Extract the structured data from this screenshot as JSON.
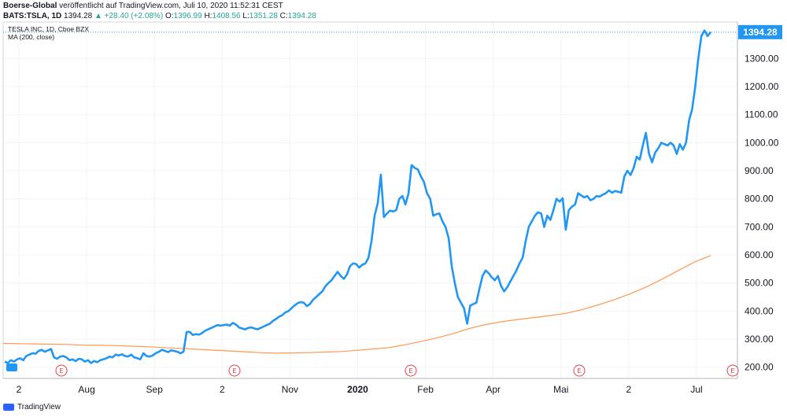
{
  "header": {
    "publisher": "Boerse-Global",
    "published_text": "veröffentlicht auf TradingView.com, Juli 10, 2020 11:52:31 CEST",
    "symbol": "BATS:TSLA, 1D",
    "last": "1394.28",
    "change": "▲ +28.40 (+2.08%)",
    "o_label": "O:",
    "o_value": "1396.99",
    "h_label": "H:",
    "h_value": "1408.56",
    "l_label": "L:",
    "l_value": "1351.28",
    "c_label": "C:",
    "c_value": "1394.28"
  },
  "legend": {
    "instrument": "TESLA INC, 1D, Cboe BZX",
    "indicator": "MA (200, close)"
  },
  "price_badge": "1394.28",
  "footer": {
    "brand": "TradingView"
  },
  "colors": {
    "price": "#2196f3",
    "ma": "#ff9850",
    "badge": "#2196f3",
    "event": "#e0414b",
    "grid": "#f0f3fa"
  },
  "chart_data": {
    "type": "line",
    "y_ticks": [
      "200.00",
      "300.00",
      "400.00",
      "500.00",
      "600.00",
      "700.00",
      "800.00",
      "900.00",
      "1000.00",
      "1100.00",
      "1200.00",
      "1300.00"
    ],
    "x_ticks": [
      "2",
      "Aug",
      "Sep",
      "2",
      "Nov",
      "2020",
      "Feb",
      "Apr",
      "Mai",
      "2",
      "Jul"
    ],
    "ylim": [
      160,
      1430
    ],
    "grid": true,
    "events": [
      "E",
      "E",
      "E",
      "E",
      "E"
    ],
    "series": [
      {
        "name": "TESLA INC, 1D, Cboe BZX",
        "values": [
          220,
          215,
          225,
          220,
          228,
          232,
          225,
          240,
          245,
          250,
          248,
          258,
          262,
          255,
          260,
          265,
          235,
          230,
          238,
          240,
          235,
          225,
          228,
          222,
          230,
          228,
          220,
          225,
          215,
          222,
          218,
          225,
          228,
          232,
          238,
          235,
          245,
          242,
          246,
          240,
          238,
          245,
          235,
          232,
          228,
          250,
          240,
          238,
          242,
          250,
          255,
          262,
          258,
          254,
          260,
          258,
          255,
          250,
          255,
          325,
          326,
          315,
          318,
          316,
          322,
          330,
          335,
          340,
          345,
          350,
          348,
          350,
          352,
          348,
          358,
          352,
          342,
          338,
          335,
          340,
          342,
          338,
          335,
          340,
          345,
          350,
          355,
          365,
          372,
          380,
          385,
          395,
          400,
          410,
          420,
          428,
          432,
          430,
          418,
          425,
          440,
          450,
          460,
          470,
          488,
          500,
          510,
          525,
          540,
          525,
          515,
          530,
          560,
          570,
          568,
          555,
          565,
          570,
          590,
          650,
          740,
          785,
          886,
          735,
          748,
          758,
          755,
          760,
          800,
          810,
          780,
          820,
          920,
          910,
          905,
          880,
          860,
          820,
          800,
          740,
          745,
          748,
          720,
          700,
          660,
          560,
          500,
          450,
          430,
          410,
          355,
          420,
          425,
          430,
          480,
          525,
          545,
          535,
          520,
          510,
          525,
          490,
          470,
          485,
          505,
          525,
          545,
          570,
          590,
          650,
          700,
          720,
          740,
          752,
          748,
          700,
          740,
          725,
          760,
          800,
          790,
          802,
          690,
          760,
          772,
          780,
          820,
          812,
          805,
          810,
          795,
          800,
          810,
          808,
          815,
          820,
          830,
          822,
          828,
          825,
          822,
          880,
          900,
          885,
          910,
          950,
          940,
          990,
          1035,
          960,
          930,
          965,
          980,
          1000,
          995,
          990,
          1000,
          990,
          960,
          995,
          975,
          1000,
          1080,
          1120,
          1200,
          1300,
          1380,
          1400,
          1380,
          1394
        ]
      },
      {
        "name": "MA (200, close)",
        "values": [
          285,
          284,
          283,
          282,
          281,
          279,
          278,
          277,
          275,
          273,
          270,
          267,
          264,
          261,
          258,
          255,
          252,
          250,
          251,
          252,
          254,
          256,
          260,
          265,
          270,
          280,
          292,
          305,
          320,
          338,
          352,
          362,
          370,
          377,
          384,
          392,
          405,
          422,
          440,
          462,
          486,
          514,
          545,
          575,
          598
        ]
      }
    ]
  }
}
